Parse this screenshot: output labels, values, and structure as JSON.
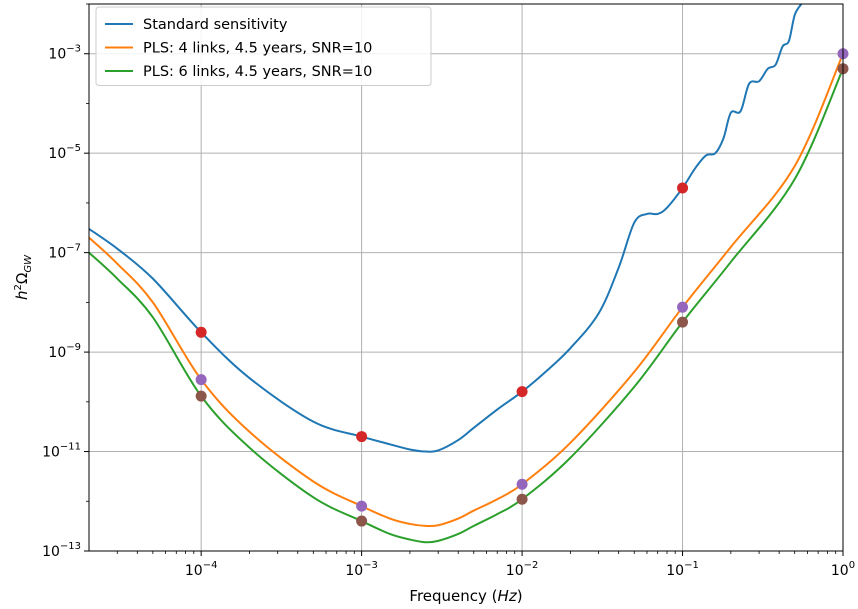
{
  "chart_data": {
    "type": "line",
    "title": "",
    "xlabel": "Frequency (Hz)",
    "xlabel_parts": {
      "prefix": "Frequency (",
      "unit": "Hz",
      "suffix": ")"
    },
    "ylabel": "h²Ω_GW",
    "ylabel_parts": {
      "h": "h",
      "sup": "2",
      "omega": "Ω",
      "sub": "GW"
    },
    "xscale": "log",
    "yscale": "log",
    "xlim": [
      2e-05,
      1
    ],
    "ylim": [
      1e-13,
      0.01
    ],
    "grid": true,
    "legend_position": "top-left",
    "x_ticks": [
      {
        "value": 0.0001,
        "base": "10",
        "exp": "−4"
      },
      {
        "value": 0.001,
        "base": "10",
        "exp": "−3"
      },
      {
        "value": 0.01,
        "base": "10",
        "exp": "−2"
      },
      {
        "value": 0.1,
        "base": "10",
        "exp": "−1"
      },
      {
        "value": 1,
        "base": "10",
        "exp": "0"
      }
    ],
    "y_ticks": [
      {
        "value": 1e-13,
        "base": "10",
        "exp": "−13"
      },
      {
        "value": 1e-11,
        "base": "10",
        "exp": "−11"
      },
      {
        "value": 1e-09,
        "base": "10",
        "exp": "−9"
      },
      {
        "value": 1e-07,
        "base": "10",
        "exp": "−7"
      },
      {
        "value": 1e-05,
        "base": "10",
        "exp": "−5"
      },
      {
        "value": 0.001,
        "base": "10",
        "exp": "−3"
      }
    ],
    "series": [
      {
        "name": "Standard sensitivity",
        "color": "#1f77b4",
        "x": [
          2e-05,
          3e-05,
          5e-05,
          0.0001,
          0.0002,
          0.0005,
          0.001,
          0.0015,
          0.002,
          0.0025,
          0.003,
          0.004,
          0.005,
          0.007,
          0.01,
          0.014,
          0.02,
          0.03,
          0.04,
          0.05,
          0.06,
          0.07,
          0.08,
          0.1,
          0.12,
          0.14,
          0.16,
          0.18,
          0.2,
          0.23,
          0.26,
          0.3,
          0.34,
          0.38,
          0.42,
          0.46,
          0.5,
          0.55
        ],
        "y": [
          3e-07,
          1.2e-07,
          3e-08,
          2.5e-09,
          3e-10,
          4e-11,
          2e-11,
          1.4e-11,
          1.1e-11,
          1e-11,
          1.05e-11,
          1.7e-11,
          3e-11,
          7e-11,
          1.6e-10,
          4e-10,
          1.2e-09,
          6e-09,
          5e-08,
          4e-07,
          6e-07,
          6e-07,
          8e-07,
          2e-06,
          5e-06,
          9e-06,
          1e-05,
          2e-05,
          6.5e-05,
          7e-05,
          0.00025,
          0.00028,
          0.0005,
          0.0006,
          0.0014,
          0.0018,
          0.006,
          0.01
        ]
      },
      {
        "name": "PLS: 4 links, 4.5 years, SNR=10",
        "color": "#ff7f0e",
        "x": [
          2e-05,
          3e-05,
          5e-05,
          0.0001,
          0.0002,
          0.0005,
          0.001,
          0.0015,
          0.002,
          0.0025,
          0.003,
          0.004,
          0.005,
          0.007,
          0.01,
          0.02,
          0.05,
          0.1,
          0.2,
          0.5,
          1
        ],
        "y": [
          2e-07,
          6e-08,
          1e-08,
          2.8e-10,
          2.5e-11,
          2.5e-12,
          8e-13,
          4.5e-13,
          3.5e-13,
          3.2e-13,
          3.3e-13,
          4.5e-13,
          6.5e-13,
          1.1e-12,
          2.2e-12,
          1.5e-11,
          4e-10,
          8e-09,
          1.3e-07,
          5.5e-06,
          0.001
        ]
      },
      {
        "name": "PLS: 6 links, 4.5 years, SNR=10",
        "color": "#2ca02c",
        "x": [
          2e-05,
          3e-05,
          5e-05,
          0.0001,
          0.0002,
          0.0005,
          0.001,
          0.0015,
          0.002,
          0.0025,
          0.003,
          0.004,
          0.005,
          0.007,
          0.01,
          0.02,
          0.05,
          0.1,
          0.2,
          0.5,
          1
        ],
        "y": [
          1e-07,
          3e-08,
          5e-09,
          1.3e-10,
          1.2e-11,
          1.2e-12,
          4e-13,
          2.2e-13,
          1.7e-13,
          1.5e-13,
          1.6e-13,
          2.2e-13,
          3.2e-13,
          5.5e-13,
          1.1e-12,
          7.5e-12,
          2e-10,
          4e-09,
          6.5e-08,
          3e-06,
          0.0005
        ]
      }
    ],
    "markers": [
      {
        "name": "standard-sensitivity-points",
        "color": "#d62728",
        "x": [
          0.0001,
          0.001,
          0.01,
          0.1
        ],
        "y": [
          2.5e-09,
          2e-11,
          1.6e-10,
          2e-06
        ]
      },
      {
        "name": "pls-4-links-points",
        "color": "#9467bd",
        "x": [
          0.0001,
          0.001,
          0.01,
          0.1,
          1
        ],
        "y": [
          2.8e-10,
          8e-13,
          2.2e-12,
          8e-09,
          0.001
        ]
      },
      {
        "name": "pls-6-links-points",
        "color": "#8c564b",
        "x": [
          0.0001,
          0.001,
          0.01,
          0.1,
          1
        ],
        "y": [
          1.3e-10,
          4e-13,
          1.1e-12,
          4e-09,
          0.0005
        ]
      }
    ]
  }
}
